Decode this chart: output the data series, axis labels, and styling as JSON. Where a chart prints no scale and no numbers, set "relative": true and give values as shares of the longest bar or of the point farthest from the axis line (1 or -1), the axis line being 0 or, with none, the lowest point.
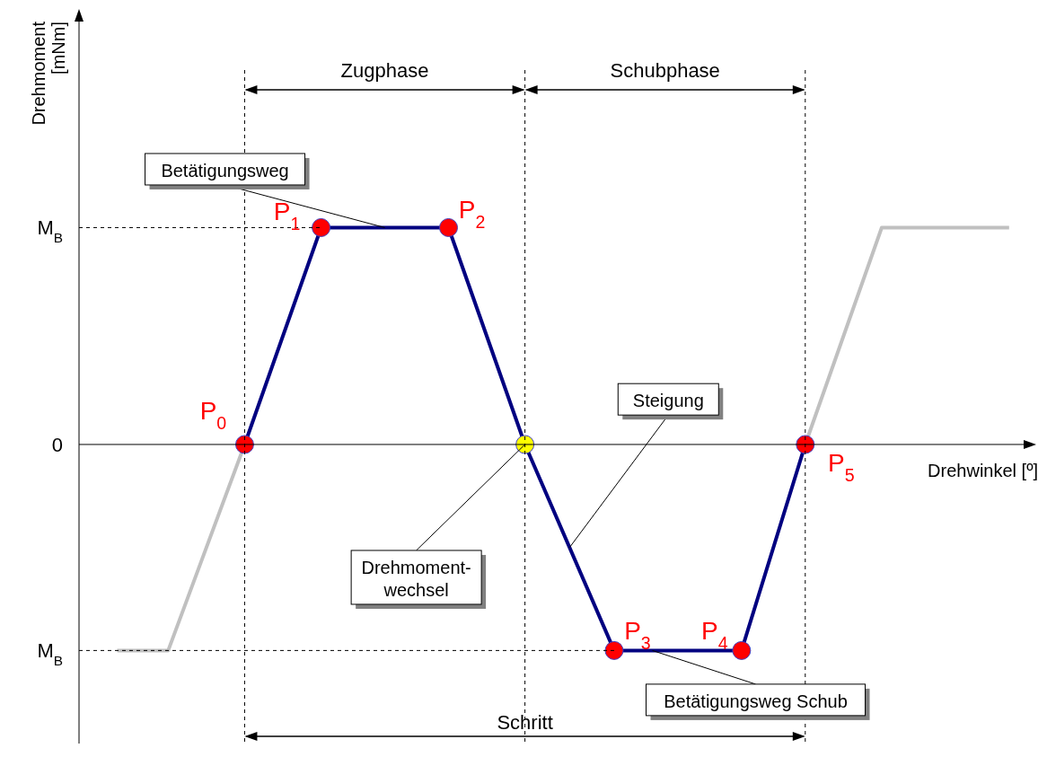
{
  "chart_data": {
    "type": "line",
    "relative": true,
    "grid": "x",
    "xlabel": "Drehwinkel [º]",
    "marker": "circle",
    "line_style": "solid",
    "categories": [
      null,
      null,
      null,
      null,
      null,
      null,
      null,
      null,
      null,
      null,
      null,
      null,
      null,
      null,
      null,
      null,
      null,
      null,
      null,
      null,
      null,
      null,
      null,
      null,
      null,
      null,
      null,
      null,
      null,
      null,
      null,
      null,
      null,
      null,
      null,
      null,
      null,
      null,
      null,
      null,
      null,
      null,
      null,
      null,
      null,
      null,
      null,
      null,
      null,
      null,
      null,
      null,
      null,
      null,
      null,
      null,
      null,
      null,
      null,
      null,
      null,
      null,
      null,
      null,
      null,
      null,
      null,
      null,
      null,
      null,
      null
    ],
    "series": [
      {
        "color": "#c0c0c0",
        "marker": "none",
        "values": [
          -0.95,
          null,
          null,
          null,
          -0.95,
          null,
          null,
          null,
          null,
          null,
          0,
          null,
          null,
          null,
          null,
          null,
          null,
          null,
          null,
          null,
          null,
          null,
          null,
          null,
          null,
          null,
          null,
          null,
          null,
          null,
          null,
          null,
          null,
          null,
          null,
          null,
          null,
          null,
          null,
          null,
          null,
          null,
          null,
          null,
          null,
          null,
          null,
          null,
          null,
          null,
          null,
          null,
          null,
          null,
          null,
          null,
          null,
          null,
          null,
          null,
          null,
          null,
          null,
          null,
          null,
          null,
          null,
          null,
          null,
          null,
          null
        ]
      },
      {
        "color": "#c0c0c0",
        "marker": "none",
        "values": [
          null,
          null,
          null,
          null,
          null,
          null,
          null,
          null,
          null,
          null,
          null,
          null,
          null,
          null,
          null,
          null,
          null,
          null,
          null,
          null,
          null,
          null,
          null,
          null,
          null,
          null,
          null,
          null,
          null,
          null,
          null,
          null,
          null,
          null,
          null,
          null,
          null,
          null,
          null,
          null,
          null,
          null,
          null,
          null,
          null,
          null,
          null,
          null,
          null,
          null,
          null,
          null,
          null,
          null,
          0,
          null,
          null,
          null,
          null,
          null,
          1,
          null,
          null,
          null,
          null,
          null,
          null,
          null,
          null,
          null,
          1
        ]
      },
      {
        "color": "#000080",
        "colors": [
          null,
          null,
          null,
          null,
          null,
          null,
          null,
          null,
          null,
          null,
          "#ff0000",
          null,
          null,
          null,
          null,
          null,
          "#ff0000",
          null,
          null,
          null,
          null,
          null,
          null,
          null,
          null,
          null,
          "#ff0000",
          null,
          null,
          null,
          null,
          null,
          "#ffff00",
          null,
          null,
          null,
          null,
          null,
          null,
          "#ff0000",
          null,
          null,
          null,
          null,
          null,
          null,
          null,
          null,
          null,
          "#ff0000",
          null,
          null,
          null,
          null,
          "#ff0000",
          null,
          null,
          null,
          null,
          null,
          null,
          null,
          null,
          null,
          null,
          null,
          null,
          null,
          null,
          null,
          null
        ],
        "values": [
          null,
          null,
          null,
          null,
          null,
          null,
          null,
          null,
          null,
          null,
          0,
          null,
          null,
          null,
          null,
          null,
          1,
          null,
          null,
          null,
          null,
          null,
          null,
          null,
          null,
          null,
          1,
          null,
          null,
          null,
          null,
          null,
          0,
          null,
          null,
          null,
          null,
          null,
          null,
          -0.95,
          null,
          null,
          null,
          null,
          null,
          null,
          null,
          null,
          null,
          -0.95,
          null,
          null,
          null,
          null,
          0,
          null,
          null,
          null,
          null,
          null,
          null,
          null,
          null,
          null,
          null,
          null,
          null,
          null,
          null,
          null,
          null
        ]
      }
    ],
    "ref_lines": [
      {
        "axis": "y",
        "value": 0,
        "label": "0",
        "line_style": "solid",
        "color": "#000000"
      },
      {
        "axis": "y",
        "value": 1,
        "label": "M$_{B}$",
        "line_style": "dashed",
        "color": "#000000"
      },
      {
        "axis": "y",
        "value": -0.95,
        "label": "M$_{B}$",
        "line_style": "dashed",
        "color": "#000000"
      }
    ],
    "annotations": [
      "P$_{0}$",
      "P$_{1}$",
      "P$_{2}$",
      "P$_{3}$",
      "P$_{4}$",
      "P$_{5}$",
      "Betätigungsweg",
      "Steigung",
      "Drehmoment-\nwechsel",
      "Betätigungsweg Schub",
      "Zugphase",
      "Schubphase",
      "Schritt",
      "Drehmoment\n[mNm]"
    ]
  }
}
